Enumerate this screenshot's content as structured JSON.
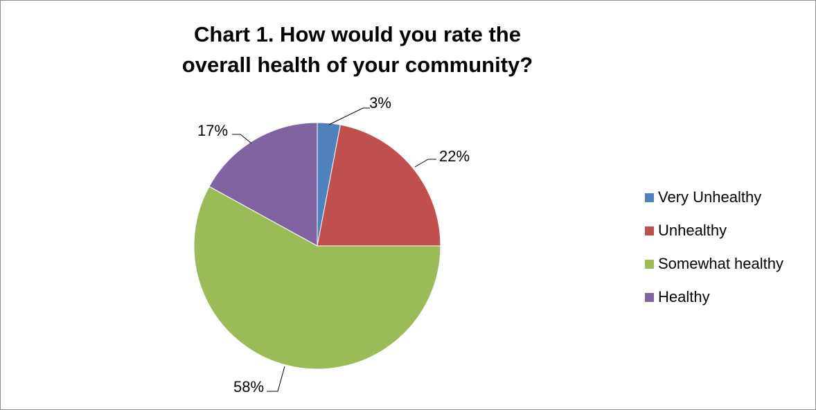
{
  "chart_data": {
    "type": "pie",
    "title_lines": [
      "Chart 1. How would you rate the",
      "overall health of your community?"
    ],
    "slices": [
      {
        "label": "Very Unhealthy",
        "value": 3,
        "display": "3%",
        "color": "#4F81BD"
      },
      {
        "label": "Unhealthy",
        "value": 22,
        "display": "22%",
        "color": "#C0504D"
      },
      {
        "label": "Somewhat healthy",
        "value": 58,
        "display": "58%",
        "color": "#9BBB59"
      },
      {
        "label": "Healthy",
        "value": 17,
        "display": "17%",
        "color": "#8064A2"
      }
    ],
    "legend_position": "right"
  }
}
